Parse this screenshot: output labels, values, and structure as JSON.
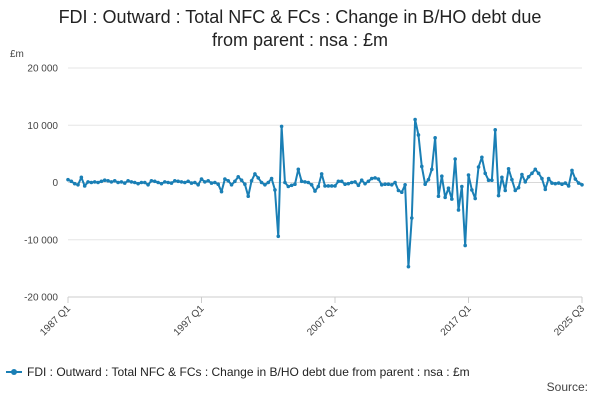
{
  "title_lines": [
    "FDI : Outward : Total NFC & FCs : Change in B/HO debt due",
    "from parent : nsa : £m"
  ],
  "source_label": "Source:",
  "colors": {
    "series": "#1a7fb5",
    "grid": "#e6e6e6",
    "axis": "#cccccc"
  },
  "chart_data": {
    "type": "line",
    "title": "FDI : Outward : Total NFC & FCs : Change in B/HO debt due from parent : nsa : £m",
    "ylabel": "£m",
    "xlabel": "",
    "ylim": [
      -20000,
      20000
    ],
    "yticks": [
      -20000,
      -10000,
      0,
      10000,
      20000
    ],
    "ytick_labels": [
      "-20 000",
      "-10 000",
      "0",
      "10 000",
      "20 000"
    ],
    "xticks": [
      "1987 Q1",
      "1997 Q1",
      "2007 Q1",
      "2017 Q1",
      "2025 Q3"
    ],
    "grid": true,
    "legend_position": "bottom-left",
    "series": [
      {
        "name": "FDI : Outward : Total NFC & FCs : Change in B/HO debt due from parent : nsa : £m",
        "points": [
          [
            "1987 Q1",
            500
          ],
          [
            "1987 Q2",
            200
          ],
          [
            "1987 Q3",
            -200
          ],
          [
            "1987 Q4",
            -400
          ],
          [
            "1988 Q1",
            900
          ],
          [
            "1988 Q2",
            -600
          ],
          [
            "1988 Q3",
            100
          ],
          [
            "1988 Q4",
            0
          ],
          [
            "1989 Q1",
            100
          ],
          [
            "1989 Q2",
            0
          ],
          [
            "1989 Q3",
            200
          ],
          [
            "1989 Q4",
            400
          ],
          [
            "1990 Q1",
            300
          ],
          [
            "1990 Q2",
            100
          ],
          [
            "1990 Q3",
            300
          ],
          [
            "1990 Q4",
            0
          ],
          [
            "1991 Q1",
            100
          ],
          [
            "1991 Q2",
            -100
          ],
          [
            "1991 Q3",
            300
          ],
          [
            "1991 Q4",
            100
          ],
          [
            "1992 Q1",
            0
          ],
          [
            "1992 Q2",
            -200
          ],
          [
            "1992 Q3",
            0
          ],
          [
            "1992 Q4",
            0
          ],
          [
            "1993 Q1",
            -400
          ],
          [
            "1993 Q2",
            300
          ],
          [
            "1993 Q3",
            200
          ],
          [
            "1993 Q4",
            0
          ],
          [
            "1994 Q1",
            -200
          ],
          [
            "1994 Q2",
            100
          ],
          [
            "1994 Q3",
            0
          ],
          [
            "1994 Q4",
            -100
          ],
          [
            "1995 Q1",
            300
          ],
          [
            "1995 Q2",
            200
          ],
          [
            "1995 Q3",
            100
          ],
          [
            "1995 Q4",
            0
          ],
          [
            "1996 Q1",
            200
          ],
          [
            "1996 Q2",
            -100
          ],
          [
            "1996 Q3",
            0
          ],
          [
            "1996 Q4",
            -400
          ],
          [
            "1997 Q1",
            600
          ],
          [
            "1997 Q2",
            100
          ],
          [
            "1997 Q3",
            300
          ],
          [
            "1997 Q4",
            -100
          ],
          [
            "1998 Q1",
            0
          ],
          [
            "1998 Q2",
            -300
          ],
          [
            "1998 Q3",
            -1600
          ],
          [
            "1998 Q4",
            600
          ],
          [
            "1999 Q1",
            300
          ],
          [
            "1999 Q2",
            -400
          ],
          [
            "1999 Q3",
            200
          ],
          [
            "1999 Q4",
            1000
          ],
          [
            "2000 Q1",
            400
          ],
          [
            "2000 Q2",
            -300
          ],
          [
            "2000 Q3",
            -2400
          ],
          [
            "2000 Q4",
            300
          ],
          [
            "2001 Q1",
            1500
          ],
          [
            "2001 Q2",
            800
          ],
          [
            "2001 Q3",
            0
          ],
          [
            "2001 Q4",
            -400
          ],
          [
            "2002 Q1",
            0
          ],
          [
            "2002 Q2",
            700
          ],
          [
            "2002 Q3",
            -1300
          ],
          [
            "2002 Q4",
            -9400
          ],
          [
            "2003 Q1",
            9800
          ],
          [
            "2003 Q2",
            0
          ],
          [
            "2003 Q3",
            -700
          ],
          [
            "2003 Q4",
            -500
          ],
          [
            "2004 Q1",
            -300
          ],
          [
            "2004 Q2",
            2300
          ],
          [
            "2004 Q3",
            200
          ],
          [
            "2004 Q4",
            100
          ],
          [
            "2005 Q1",
            0
          ],
          [
            "2005 Q2",
            -400
          ],
          [
            "2005 Q3",
            -1500
          ],
          [
            "2005 Q4",
            -700
          ],
          [
            "2006 Q1",
            1500
          ],
          [
            "2006 Q2",
            -600
          ],
          [
            "2006 Q3",
            -600
          ],
          [
            "2006 Q4",
            -600
          ],
          [
            "2007 Q1",
            -600
          ],
          [
            "2007 Q2",
            200
          ],
          [
            "2007 Q3",
            200
          ],
          [
            "2007 Q4",
            -300
          ],
          [
            "2008 Q1",
            -200
          ],
          [
            "2008 Q2",
            0
          ],
          [
            "2008 Q3",
            100
          ],
          [
            "2008 Q4",
            -500
          ],
          [
            "2009 Q1",
            400
          ],
          [
            "2009 Q2",
            -200
          ],
          [
            "2009 Q3",
            200
          ],
          [
            "2009 Q4",
            700
          ],
          [
            "2010 Q1",
            800
          ],
          [
            "2010 Q2",
            600
          ],
          [
            "2010 Q3",
            -400
          ],
          [
            "2010 Q4",
            -300
          ],
          [
            "2011 Q1",
            -300
          ],
          [
            "2011 Q2",
            -400
          ],
          [
            "2011 Q3",
            0
          ],
          [
            "2011 Q4",
            -1400
          ],
          [
            "2012 Q1",
            -1700
          ],
          [
            "2012 Q2",
            -400
          ],
          [
            "2012 Q3",
            -14700
          ],
          [
            "2012 Q4",
            -6200
          ],
          [
            "2013 Q1",
            11000
          ],
          [
            "2013 Q2",
            8300
          ],
          [
            "2013 Q3",
            2800
          ],
          [
            "2013 Q4",
            -300
          ],
          [
            "2014 Q1",
            500
          ],
          [
            "2014 Q2",
            2300
          ],
          [
            "2014 Q3",
            7800
          ],
          [
            "2014 Q4",
            -2400
          ],
          [
            "2015 Q1",
            1100
          ],
          [
            "2015 Q2",
            -2600
          ],
          [
            "2015 Q3",
            -1000
          ],
          [
            "2015 Q4",
            -2900
          ],
          [
            "2016 Q1",
            4100
          ],
          [
            "2016 Q2",
            -4800
          ],
          [
            "2016 Q3",
            -700
          ],
          [
            "2016 Q4",
            -11000
          ],
          [
            "2017 Q1",
            1300
          ],
          [
            "2017 Q2",
            -1300
          ],
          [
            "2017 Q3",
            -2800
          ],
          [
            "2017 Q4",
            2700
          ],
          [
            "2018 Q1",
            4400
          ],
          [
            "2018 Q2",
            1600
          ],
          [
            "2018 Q3",
            400
          ],
          [
            "2018 Q4",
            400
          ],
          [
            "2019 Q1",
            9200
          ],
          [
            "2019 Q2",
            -2300
          ],
          [
            "2019 Q3",
            900
          ],
          [
            "2019 Q4",
            -1400
          ],
          [
            "2020 Q1",
            2400
          ],
          [
            "2020 Q2",
            500
          ],
          [
            "2020 Q3",
            -1400
          ],
          [
            "2020 Q4",
            -900
          ],
          [
            "2021 Q1",
            1400
          ],
          [
            "2021 Q2",
            100
          ],
          [
            "2021 Q3",
            1000
          ],
          [
            "2021 Q4",
            1600
          ],
          [
            "2022 Q1",
            2300
          ],
          [
            "2022 Q2",
            1600
          ],
          [
            "2022 Q3",
            700
          ],
          [
            "2022 Q4",
            -1200
          ],
          [
            "2023 Q1",
            700
          ],
          [
            "2023 Q2",
            -100
          ],
          [
            "2023 Q3",
            -200
          ],
          [
            "2023 Q4",
            -100
          ],
          [
            "2024 Q1",
            -300
          ],
          [
            "2024 Q2",
            -100
          ],
          [
            "2024 Q3",
            -600
          ],
          [
            "2024 Q4",
            2100
          ],
          [
            "2025 Q1",
            600
          ],
          [
            "2025 Q2",
            -100
          ],
          [
            "2025 Q3",
            -400
          ]
        ]
      }
    ]
  }
}
